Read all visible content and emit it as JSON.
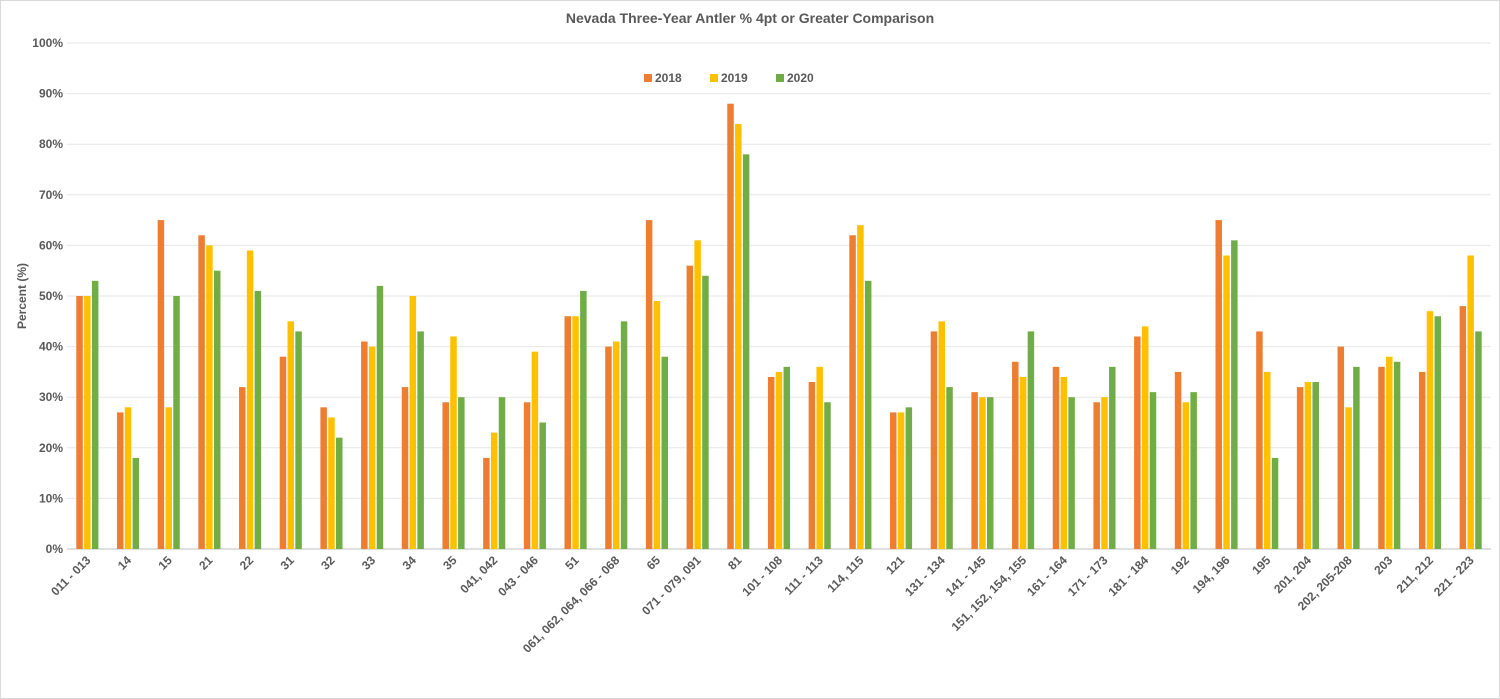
{
  "chart_data": {
    "type": "bar",
    "title": "Nevada Three-Year Antler % 4pt or Greater Comparison",
    "xlabel": "",
    "ylabel": "Percent (%)",
    "ylim": [
      0,
      100
    ],
    "yticks": [
      "0%",
      "10%",
      "20%",
      "30%",
      "40%",
      "50%",
      "60%",
      "70%",
      "80%",
      "90%",
      "100%"
    ],
    "grid": true,
    "legend_position": "top-center",
    "categories": [
      "011 - 013",
      "14",
      "15",
      "21",
      "22",
      "31",
      "32",
      "33",
      "34",
      "35",
      "041, 042",
      "043 - 046",
      "51",
      "061, 062, 064, 066 - 068",
      "65",
      "071 - 079, 091",
      "81",
      "101 - 108",
      "111 - 113",
      "114, 115",
      "121",
      "131 - 134",
      "141 - 145",
      "151, 152, 154, 155",
      "161 - 164",
      "171 - 173",
      "181 - 184",
      "192",
      "194, 196",
      "195",
      "201, 204",
      "202, 205-208",
      "203",
      "211, 212",
      "221 - 223"
    ],
    "series": [
      {
        "name": "2018",
        "color": "#ED7D31",
        "values": [
          50,
          27,
          65,
          62,
          32,
          38,
          28,
          41,
          32,
          29,
          18,
          29,
          46,
          40,
          65,
          56,
          88,
          34,
          33,
          62,
          27,
          43,
          31,
          37,
          36,
          29,
          42,
          35,
          65,
          43,
          32,
          40,
          36,
          35,
          48
        ]
      },
      {
        "name": "2019",
        "color": "#FFC000",
        "values": [
          50,
          28,
          28,
          60,
          59,
          45,
          26,
          40,
          50,
          42,
          23,
          39,
          46,
          41,
          49,
          61,
          84,
          35,
          36,
          64,
          27,
          45,
          30,
          34,
          34,
          30,
          44,
          29,
          58,
          35,
          33,
          28,
          38,
          47,
          58
        ]
      },
      {
        "name": "2020",
        "color": "#70AD47",
        "values": [
          53,
          18,
          50,
          55,
          51,
          43,
          22,
          52,
          43,
          30,
          30,
          25,
          51,
          45,
          38,
          54,
          78,
          36,
          29,
          53,
          28,
          32,
          30,
          43,
          30,
          36,
          31,
          31,
          61,
          18,
          33,
          36,
          37,
          46,
          43
        ]
      }
    ]
  }
}
